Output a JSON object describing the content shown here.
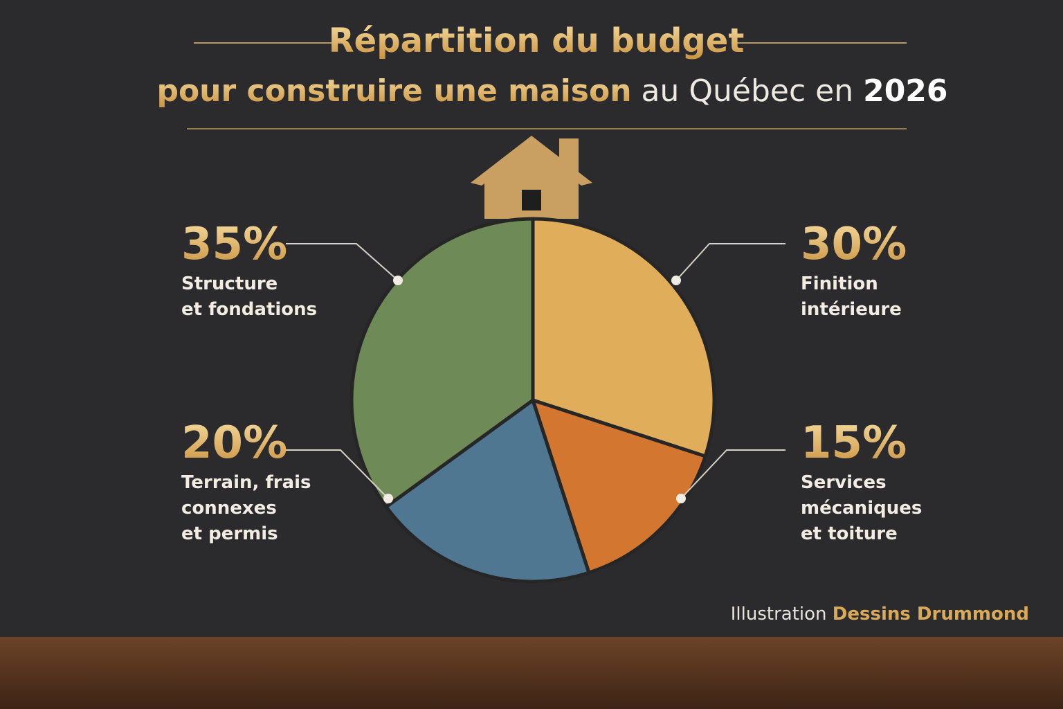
{
  "chart_data": {
    "type": "pie",
    "title_parts": [
      "Répartition du budget",
      "pour construire une maison",
      "au Québec en",
      "2026"
    ],
    "categories": [
      "Finition\nintérieure",
      "Services\nmécaniques\net toiture",
      "Terrain, frais\nconnexes\net permis",
      "Structure\net fondations"
    ],
    "values": [
      30,
      15,
      20,
      35
    ],
    "value_labels": [
      "30%",
      "15%",
      "20%",
      "35%"
    ],
    "colors": [
      "#e0ad5a",
      "#d27630",
      "#4f7791",
      "#6e8a56"
    ],
    "credit": [
      "Illustration",
      "Dessins Drummond"
    ]
  }
}
